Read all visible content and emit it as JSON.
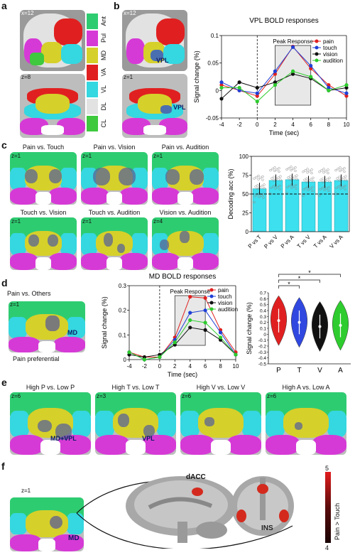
{
  "panel_labels": {
    "a": "a",
    "b": "b",
    "c": "c",
    "d": "d",
    "e": "e",
    "f": "f"
  },
  "slice_labels": {
    "x12": "x=12",
    "z8": "z=8",
    "z1": "z=1",
    "z4": "z=4",
    "z6": "z=6",
    "z3": "z=3"
  },
  "legend_regions": [
    {
      "label": "Ant",
      "color": "#2ecc71"
    },
    {
      "label": "Pul",
      "color": "#d63ad6"
    },
    {
      "label": "MD",
      "color": "#d6d02a"
    },
    {
      "label": "VA",
      "color": "#e02020"
    },
    {
      "label": "VL",
      "color": "#35d7e0"
    },
    {
      "label": "DL",
      "color": "#e2e2e2"
    },
    {
      "label": "CL",
      "color": "#3ec93e"
    }
  ],
  "roi_labels": {
    "vpl": "VPL",
    "md": "MD",
    "mdvpl": "MD+VPL",
    "dacc": "dACC",
    "ins": "INS"
  },
  "contrast_titles_c": [
    "Pain vs. Touch",
    "Pain vs. Vision",
    "Pain vs. Audition",
    "Touch vs. Vision",
    "Touch vs. Audition",
    "Vision vs. Audition"
  ],
  "contrast_titles_e": [
    "High P vs. Low P",
    "High T vs. Low T",
    "High V vs. Low V",
    "High A vs. Low A"
  ],
  "d_text": {
    "pain_vs_others": "Pain vs. Others",
    "pain_preferential": "Pain preferential"
  },
  "colorbar": {
    "max": "5",
    "min": "4",
    "label": "Pain > Touch"
  },
  "chart_data": [
    {
      "id": "vpl",
      "type": "line",
      "title": "VPL BOLD responses",
      "xlabel": "Time (sec)",
      "ylabel": "Signal change (%)",
      "annotation": "Peak Response",
      "x": [
        -4,
        -2,
        0,
        2,
        4,
        6,
        8,
        10
      ],
      "xlim": [
        -4,
        10
      ],
      "ylim": [
        -0.05,
        0.1
      ],
      "yticks": [
        "-0.05",
        "0",
        "0.05",
        "0.1"
      ],
      "xticks": [
        "-4",
        "-2",
        "0",
        "2",
        "4",
        "6",
        "8",
        "10"
      ],
      "series": [
        {
          "name": "pain",
          "color": "#e02020",
          "values": [
            0.01,
            0.0,
            -0.01,
            0.03,
            0.08,
            0.04,
            0.01,
            -0.01
          ]
        },
        {
          "name": "touch",
          "color": "#1f3fd6",
          "values": [
            0.015,
            0.0,
            -0.005,
            0.035,
            0.079,
            0.045,
            0.005,
            -0.005
          ]
        },
        {
          "name": "vision",
          "color": "#111111",
          "values": [
            -0.015,
            0.015,
            0.005,
            0.015,
            0.03,
            0.022,
            0.0,
            0.005
          ]
        },
        {
          "name": "audition",
          "color": "#2ecc2e",
          "values": [
            0.005,
            0.005,
            -0.02,
            0.01,
            0.035,
            0.025,
            0.0,
            0.01
          ]
        }
      ]
    },
    {
      "id": "decoding",
      "type": "bar",
      "ylabel": "Decoding acc (%)",
      "categories": [
        "P vs T",
        "P vs V",
        "P vs A",
        "T vs V",
        "T vs A",
        "V vs A"
      ],
      "values": [
        57,
        68,
        69,
        66,
        66,
        68
      ],
      "ylim": [
        0,
        100
      ],
      "yticks": [
        "0",
        "25",
        "50",
        "75",
        "100"
      ],
      "chance": 50
    },
    {
      "id": "md",
      "type": "line",
      "title": "MD BOLD responses",
      "xlabel": "Time (sec)",
      "ylabel": "Signal change (%)",
      "annotation": "Peak Response",
      "x": [
        -4,
        -2,
        0,
        2,
        4,
        6,
        8,
        10
      ],
      "xlim": [
        -4,
        10
      ],
      "ylim": [
        0,
        0.3
      ],
      "yticks": [
        "0",
        "0.1",
        "0.2",
        "0.3"
      ],
      "xticks": [
        "-4",
        "-2",
        "0",
        "2",
        "4",
        "6",
        "8",
        "10"
      ],
      "series": [
        {
          "name": "pain",
          "color": "#e02020",
          "values": [
            0.03,
            0.01,
            0.01,
            0.09,
            0.255,
            0.25,
            0.12,
            0.03
          ]
        },
        {
          "name": "touch",
          "color": "#1f3fd6",
          "values": [
            0.03,
            0.0,
            0.01,
            0.08,
            0.19,
            0.2,
            0.11,
            0.02
          ]
        },
        {
          "name": "vision",
          "color": "#111111",
          "values": [
            0.02,
            0.01,
            0.02,
            0.06,
            0.13,
            0.12,
            0.08,
            0.02
          ]
        },
        {
          "name": "audition",
          "color": "#2ecc2e",
          "values": [
            0.03,
            0.0,
            0.01,
            0.07,
            0.16,
            0.15,
            0.09,
            0.02
          ]
        }
      ]
    },
    {
      "id": "violin",
      "type": "violin",
      "ylabel": "Signal change (%)",
      "categories": [
        "P",
        "T",
        "V",
        "A"
      ],
      "colors": [
        "#e02020",
        "#3048e0",
        "#111111",
        "#2ecc2e"
      ],
      "medians": [
        0.23,
        0.2,
        0.13,
        0.15
      ],
      "ylim": [
        -0.5,
        0.7
      ],
      "yticks": [
        "-0.5",
        "-0.4",
        "-0.3",
        "-0.2",
        "-0.1",
        "0",
        "0.1",
        "0.2",
        "0.3",
        "0.4",
        "0.5",
        "0.6",
        "0.7"
      ],
      "significance": "*"
    }
  ]
}
